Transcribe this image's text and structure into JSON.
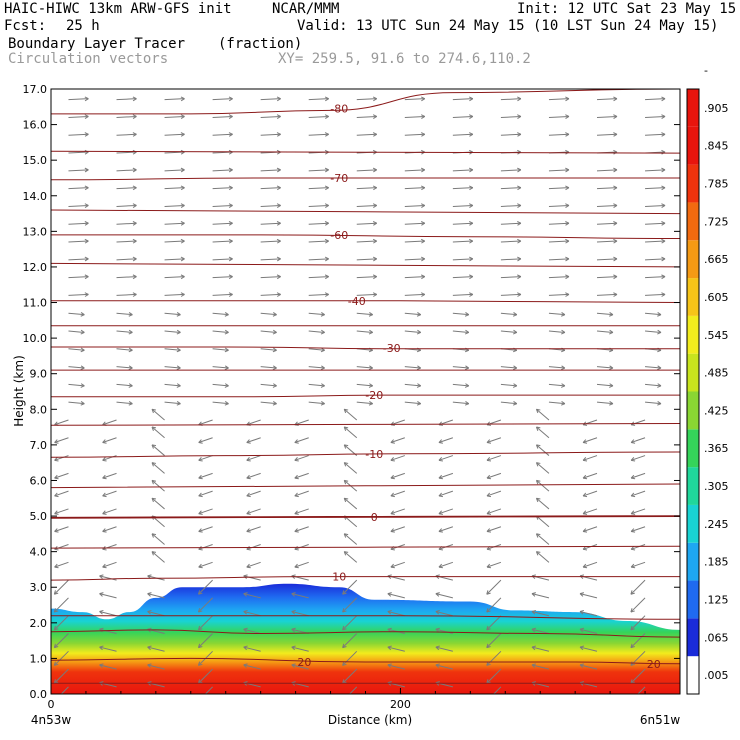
{
  "header": {
    "model": "HAIC-HIWC 13km ARW-GFS init",
    "org": "NCAR/MMM",
    "init": "Init: 12 UTC Sat 23 May 15",
    "fcst_label": "Fcst:",
    "fcst_value": "25 h",
    "valid": "Valid: 13 UTC Sun 24 May 15 (10 LST Sun 24 May 15)",
    "field_name": "Boundary Layer Tracer",
    "field_units": "(fraction)",
    "overlay": "Circulation vectors",
    "xy": "XY= 259.5, 91.6 to 274.6,110.2"
  },
  "colors": {
    "contour": "#8b1a1a",
    "vector": "#7a7a7a",
    "colorbar": [
      "#ffffff",
      "#1a2bd9",
      "#1f6af0",
      "#1ea7f2",
      "#19d3d3",
      "#20d79b",
      "#35d45a",
      "#8ad633",
      "#c8e41e",
      "#f2ec1d",
      "#f6c418",
      "#f59a14",
      "#f26a10",
      "#ef330d",
      "#e8150d",
      "#e8150d"
    ]
  },
  "chart_data": {
    "type": "heatmap",
    "xlabel": "Distance (km)",
    "ylabel": "Height (km)",
    "xlim": [
      0,
      360
    ],
    "ylim": [
      0,
      17
    ],
    "x_ticks": [
      {
        "value": 0,
        "label": "0"
      },
      {
        "value": 200,
        "label": "200"
      }
    ],
    "x_endpoints": {
      "left": "4n53w",
      "right": "6n51w"
    },
    "y_ticks": [
      "0.0",
      "1.0",
      "2.0",
      "3.0",
      "4.0",
      "5.0",
      "6.0",
      "7.0",
      "8.0",
      "9.0",
      "10.0",
      "11.0",
      "12.0",
      "13.0",
      "14.0",
      "15.0",
      "16.0",
      "17.0"
    ],
    "colorbar_labels": [
      ".005",
      ".065",
      ".125",
      ".185",
      ".245",
      ".305",
      ".365",
      ".425",
      ".485",
      ".545",
      ".605",
      ".665",
      ".725",
      ".785",
      ".845",
      ".905",
      "-"
    ],
    "tracer_top_km": [
      {
        "x": 0,
        "z": 2.4
      },
      {
        "x": 18,
        "z": 2.3
      },
      {
        "x": 32,
        "z": 2.1
      },
      {
        "x": 45,
        "z": 2.3
      },
      {
        "x": 60,
        "z": 2.7
      },
      {
        "x": 75,
        "z": 3.0
      },
      {
        "x": 110,
        "z": 3.0
      },
      {
        "x": 135,
        "z": 3.1
      },
      {
        "x": 165,
        "z": 3.0
      },
      {
        "x": 185,
        "z": 2.65
      },
      {
        "x": 240,
        "z": 2.6
      },
      {
        "x": 265,
        "z": 2.35
      },
      {
        "x": 300,
        "z": 2.3
      },
      {
        "x": 330,
        "z": 2.05
      },
      {
        "x": 360,
        "z": 1.8
      }
    ],
    "temperature_contours": [
      {
        "label": "20",
        "label_x": 145,
        "points": [
          [
            0,
            0.95
          ],
          [
            80,
            1.0
          ],
          [
            180,
            0.9
          ],
          [
            300,
            0.9
          ],
          [
            360,
            0.85
          ]
        ],
        "label_at": [
          [
            145,
            0.9
          ],
          [
            345,
            0.85
          ]
        ]
      },
      {
        "label": "10",
        "label_x": 165,
        "points": [
          [
            0,
            3.2
          ],
          [
            60,
            3.25
          ],
          [
            150,
            3.3
          ],
          [
            250,
            3.3
          ],
          [
            360,
            3.3
          ]
        ],
        "label_at": [
          [
            165,
            3.3
          ]
        ]
      },
      {
        "label": "0",
        "label_x": 185,
        "points": [
          [
            0,
            4.95
          ],
          [
            120,
            4.97
          ],
          [
            200,
            4.98
          ],
          [
            360,
            5.0
          ]
        ],
        "label_at": [
          [
            185,
            4.98
          ]
        ]
      },
      {
        "label": "-10",
        "label_x": 185,
        "points": [
          [
            0,
            6.65
          ],
          [
            100,
            6.7
          ],
          [
            200,
            6.75
          ],
          [
            360,
            6.8
          ]
        ],
        "label_at": [
          [
            185,
            6.75
          ]
        ]
      },
      {
        "label": "-20",
        "label_x": 185,
        "points": [
          [
            0,
            8.35
          ],
          [
            100,
            8.35
          ],
          [
            200,
            8.4
          ],
          [
            360,
            8.4
          ]
        ],
        "label_at": [
          [
            185,
            8.4
          ]
        ]
      },
      {
        "label": "-30",
        "label_x": 195,
        "points": [
          [
            0,
            9.75
          ],
          [
            100,
            9.75
          ],
          [
            200,
            9.7
          ],
          [
            360,
            9.7
          ]
        ],
        "label_at": [
          [
            195,
            9.72
          ]
        ]
      },
      {
        "label": "-40",
        "label_x": 175,
        "points": [
          [
            0,
            11.05
          ],
          [
            100,
            11.05
          ],
          [
            200,
            11.05
          ],
          [
            360,
            11.0
          ]
        ],
        "label_at": [
          [
            175,
            11.05
          ]
        ]
      },
      {
        "label": "-60",
        "label_x": 165,
        "points": [
          [
            0,
            12.9
          ],
          [
            120,
            12.9
          ],
          [
            240,
            12.85
          ],
          [
            360,
            12.8
          ]
        ],
        "label_at": [
          [
            165,
            12.9
          ]
        ]
      },
      {
        "label": "-70",
        "label_x": 165,
        "points": [
          [
            0,
            14.45
          ],
          [
            120,
            14.5
          ],
          [
            240,
            14.5
          ],
          [
            360,
            14.5
          ]
        ],
        "label_at": [
          [
            165,
            14.5
          ]
        ]
      },
      {
        "label": "-80",
        "label_x": 165,
        "points": [
          [
            0,
            16.3
          ],
          [
            80,
            16.3
          ],
          [
            160,
            16.4
          ],
          [
            230,
            16.9
          ],
          [
            360,
            17.0
          ]
        ],
        "label_at": [
          [
            165,
            16.45
          ]
        ]
      }
    ],
    "other_contours": [
      {
        "points": [
          [
            0,
            0.3
          ],
          [
            100,
            0.3
          ],
          [
            200,
            0.3
          ],
          [
            360,
            0.3
          ]
        ]
      },
      {
        "points": [
          [
            0,
            1.75
          ],
          [
            60,
            1.8
          ],
          [
            120,
            1.7
          ],
          [
            200,
            1.75
          ],
          [
            280,
            1.7
          ],
          [
            360,
            1.6
          ]
        ]
      },
      {
        "points": [
          [
            0,
            2.2
          ],
          [
            60,
            2.2
          ],
          [
            200,
            2.2
          ],
          [
            360,
            2.1
          ]
        ]
      },
      {
        "points": [
          [
            0,
            4.1
          ],
          [
            360,
            4.15
          ]
        ]
      },
      {
        "points": [
          [
            0,
            5.8
          ],
          [
            360,
            5.9
          ]
        ]
      },
      {
        "points": [
          [
            0,
            7.55
          ],
          [
            360,
            7.6
          ]
        ]
      },
      {
        "points": [
          [
            0,
            9.1
          ],
          [
            360,
            9.1
          ]
        ]
      },
      {
        "points": [
          [
            0,
            10.35
          ],
          [
            360,
            10.35
          ]
        ]
      },
      {
        "points": [
          [
            0,
            12.1
          ],
          [
            360,
            12.0
          ]
        ]
      },
      {
        "points": [
          [
            0,
            13.6
          ],
          [
            360,
            13.5
          ]
        ]
      },
      {
        "points": [
          [
            0,
            15.25
          ],
          [
            360,
            15.2
          ]
        ]
      }
    ]
  }
}
